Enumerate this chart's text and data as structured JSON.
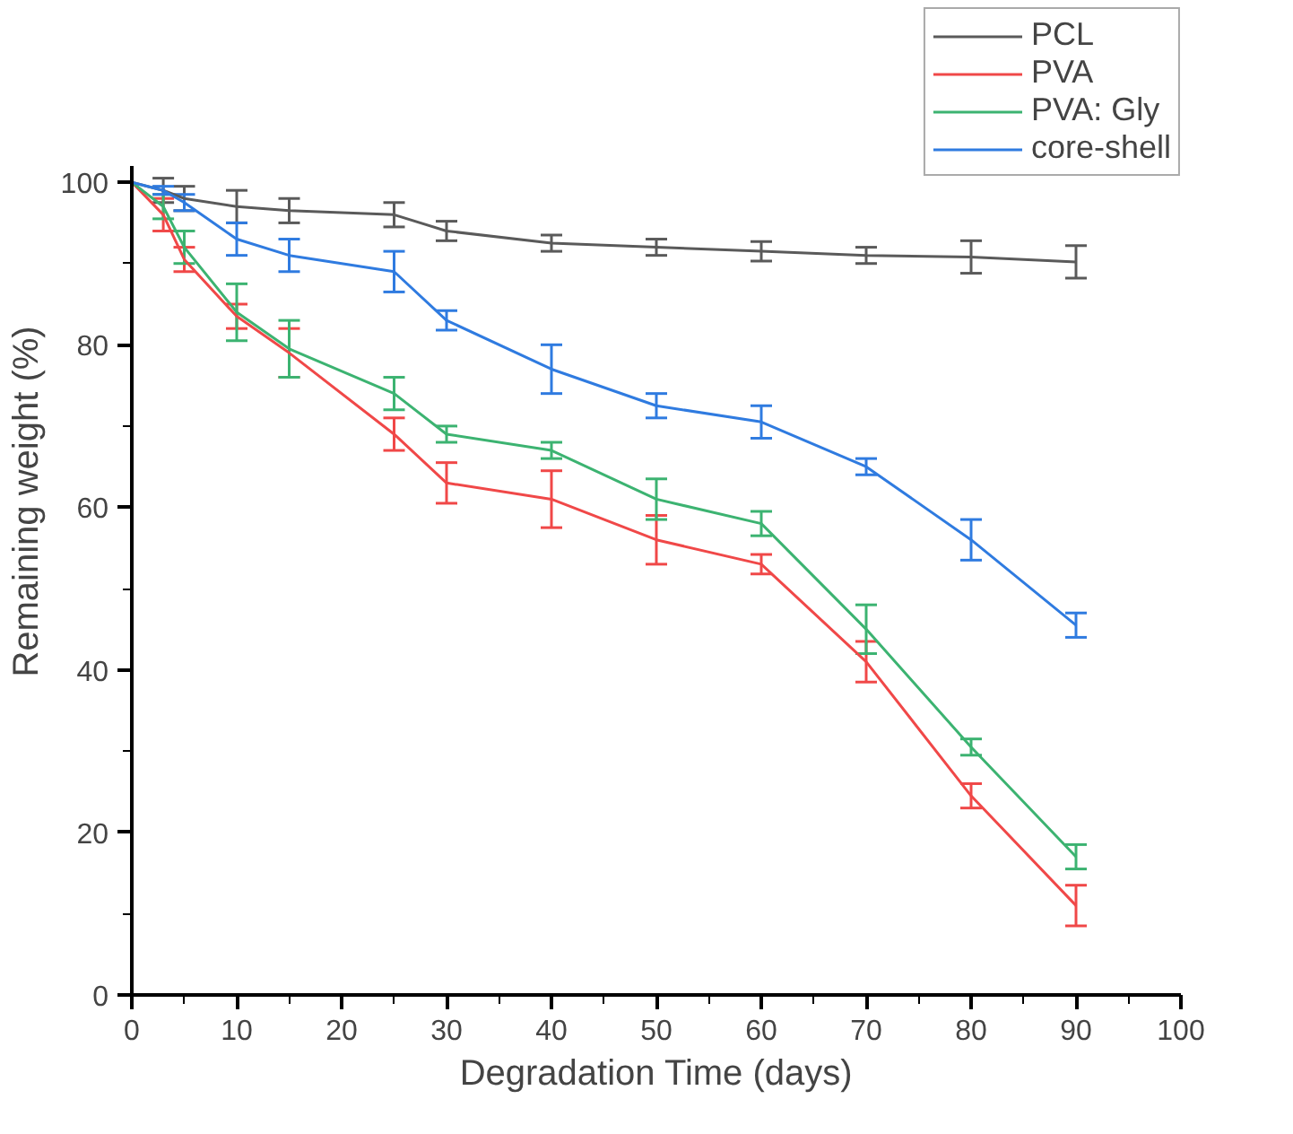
{
  "chart_data": {
    "type": "line",
    "xlabel": "Degradation Time (days)",
    "ylabel": "Remaining weight (%)",
    "x": [
      0,
      3,
      5,
      10,
      15,
      25,
      30,
      40,
      50,
      60,
      70,
      80,
      90
    ],
    "xlim": [
      0,
      100
    ],
    "xticks": [
      0,
      10,
      20,
      30,
      40,
      50,
      60,
      70,
      80,
      90,
      100
    ],
    "ylim": [
      0,
      102
    ],
    "yticks": [
      0,
      20,
      40,
      60,
      80,
      100
    ],
    "grid": false,
    "legend": "top right",
    "marker": "none",
    "line_style": "solid",
    "series": [
      {
        "name": "PCL",
        "color": "#5a5a5a",
        "values": [
          100,
          99,
          98,
          97,
          96.5,
          96,
          94,
          92.5,
          92,
          91.5,
          91,
          90.8,
          90.2
        ],
        "errors": [
          null,
          1.5,
          1.5,
          2,
          1.5,
          1.5,
          1.2,
          1,
          1,
          1.2,
          1,
          2,
          2
        ]
      },
      {
        "name": "PVA",
        "color": "#f04848",
        "values": [
          100,
          96,
          90.5,
          83.5,
          79,
          69,
          63,
          61,
          56,
          53,
          41,
          24.5,
          11
        ],
        "errors": [
          null,
          2,
          1.5,
          1.5,
          3,
          2,
          2.5,
          3.5,
          3,
          1.2,
          2.5,
          1.5,
          2.5
        ]
      },
      {
        "name": "PVA: Gly",
        "color": "#3cb371",
        "values": [
          100,
          97,
          92,
          84,
          79.5,
          74,
          69,
          67,
          61,
          58,
          45,
          30.5,
          17
        ],
        "errors": [
          null,
          1.5,
          2,
          3.5,
          3.5,
          2,
          1,
          1,
          2.5,
          1.5,
          3,
          1,
          1.5
        ]
      },
      {
        "name": "core-shell",
        "color": "#2f7be0",
        "values": [
          100,
          99,
          97.5,
          93,
          91,
          89,
          83,
          77,
          72.5,
          70.5,
          65,
          56,
          45.5
        ],
        "errors": [
          null,
          0.5,
          1,
          2,
          2,
          2.5,
          1.2,
          3,
          1.5,
          2,
          1,
          2.5,
          1.5
        ]
      }
    ]
  }
}
